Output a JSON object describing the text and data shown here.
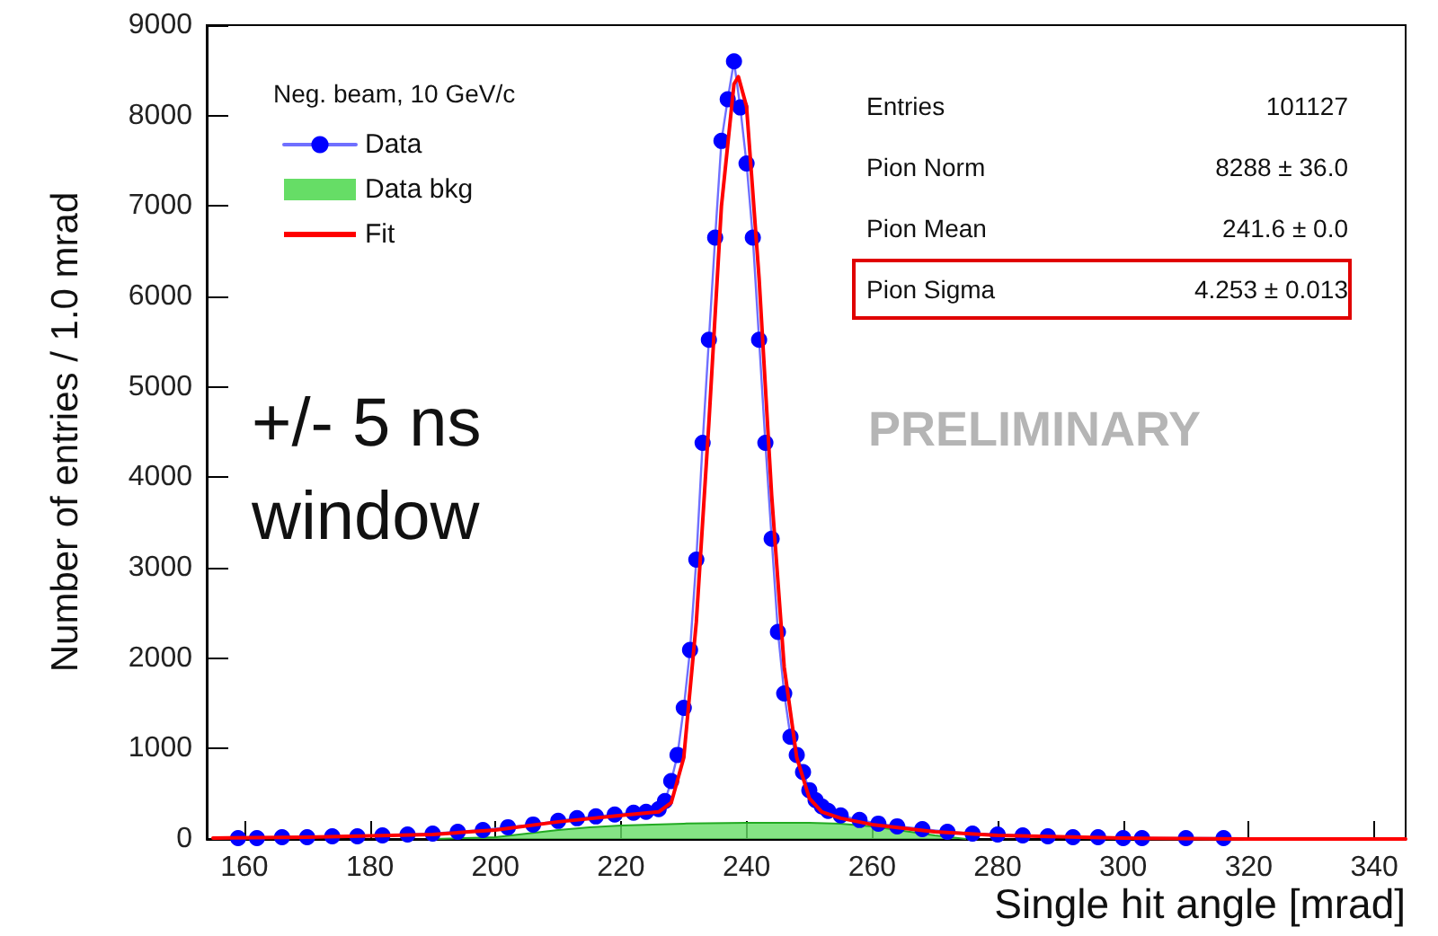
{
  "chart_data": {
    "type": "line",
    "xlabel": "Single hit angle [mrad]",
    "ylabel": "Number of entries / 1.0 mrad",
    "legend_title": "Neg. beam, 10 GeV/c",
    "legend": "top left",
    "grid": false,
    "xlim": [
      154,
      345
    ],
    "xticks": [
      160,
      180,
      200,
      220,
      240,
      260,
      280,
      300,
      320,
      340
    ],
    "ylim": [
      0,
      9000
    ],
    "yticks": [
      0,
      1000,
      2000,
      3000,
      4000,
      5000,
      6000,
      7000,
      8000,
      9000
    ],
    "series": [
      {
        "name": "Data",
        "marker": "circle",
        "color": "#0000ff",
        "x": [
          159,
          162,
          166,
          170,
          174,
          178,
          182,
          186,
          190,
          194,
          198,
          202,
          206,
          210,
          213,
          216,
          219,
          222,
          224,
          226,
          227,
          228,
          229,
          230,
          231,
          232,
          233,
          234,
          235,
          236,
          237,
          238,
          239,
          240,
          241,
          242,
          243,
          244,
          245,
          246,
          247,
          248,
          249,
          250,
          251,
          252,
          253,
          255,
          258,
          261,
          264,
          268,
          272,
          276,
          280,
          284,
          288,
          292,
          296,
          300,
          303,
          310,
          316
        ],
        "values": [
          10,
          10,
          20,
          20,
          30,
          30,
          40,
          50,
          60,
          80,
          100,
          130,
          160,
          200,
          230,
          250,
          270,
          290,
          300,
          330,
          420,
          640,
          930,
          1450,
          2090,
          3090,
          4380,
          5520,
          6650,
          7720,
          8180,
          8600,
          8090,
          7470,
          6650,
          5520,
          4380,
          3320,
          2290,
          1610,
          1130,
          930,
          740,
          540,
          430,
          360,
          310,
          260,
          210,
          170,
          140,
          110,
          80,
          60,
          50,
          40,
          30,
          20,
          20,
          10,
          10,
          10,
          10
        ]
      },
      {
        "name": "Data bkg",
        "type": "area",
        "color": "#66dd66",
        "x": [
          190,
          200,
          205,
          210,
          215,
          220,
          225,
          230,
          240,
          250,
          255,
          260,
          265,
          270,
          275
        ],
        "values": [
          0,
          20,
          60,
          100,
          130,
          150,
          160,
          170,
          180,
          180,
          170,
          140,
          90,
          40,
          0
        ]
      },
      {
        "name": "Fit",
        "color": "#ff0000",
        "x": [
          155,
          170,
          190,
          200,
          210,
          220,
          226,
          228,
          230,
          232,
          234,
          236,
          238,
          238.7,
          240,
          242,
          244,
          246,
          248,
          250,
          252,
          255,
          260,
          270,
          280,
          300,
          320,
          345
        ],
        "values": [
          10,
          20,
          50,
          100,
          190,
          260,
          300,
          400,
          900,
          2400,
          4600,
          7000,
          8350,
          8430,
          8100,
          6200,
          3800,
          1900,
          900,
          450,
          300,
          230,
          160,
          80,
          40,
          10,
          0,
          0
        ]
      }
    ],
    "annotations": [
      "+/- 5 ns window",
      "PRELIMINARY",
      "Entries",
      "101127",
      "Pion Norm",
      "8288 ± 36.0",
      "Pion Mean",
      "241.6 ± 0.0",
      "Pion Sigma",
      "4.253 ± 0.013"
    ]
  }
}
